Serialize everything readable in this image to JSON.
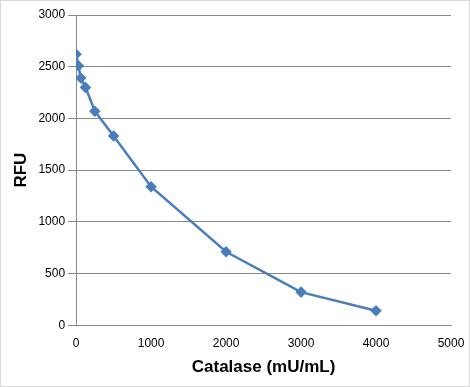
{
  "chart_data": {
    "type": "line",
    "x_label": "Catalase (mU/mL)",
    "y_label": "RFU",
    "x": [
      0,
      31.25,
      62.5,
      125,
      250,
      500,
      1000,
      2000,
      3000,
      4000
    ],
    "values": [
      2620,
      2510,
      2390,
      2300,
      2070,
      1830,
      1340,
      710,
      320,
      140
    ],
    "color": "#4a7ebb",
    "marker": "diamond",
    "xlim": [
      0,
      5000
    ],
    "xticks": [
      0,
      1000,
      2000,
      3000,
      4000,
      5000
    ],
    "ylim": [
      0,
      3000
    ],
    "yticks": [
      0,
      500,
      1000,
      1500,
      2000,
      2500,
      3000
    ],
    "grid": true
  }
}
